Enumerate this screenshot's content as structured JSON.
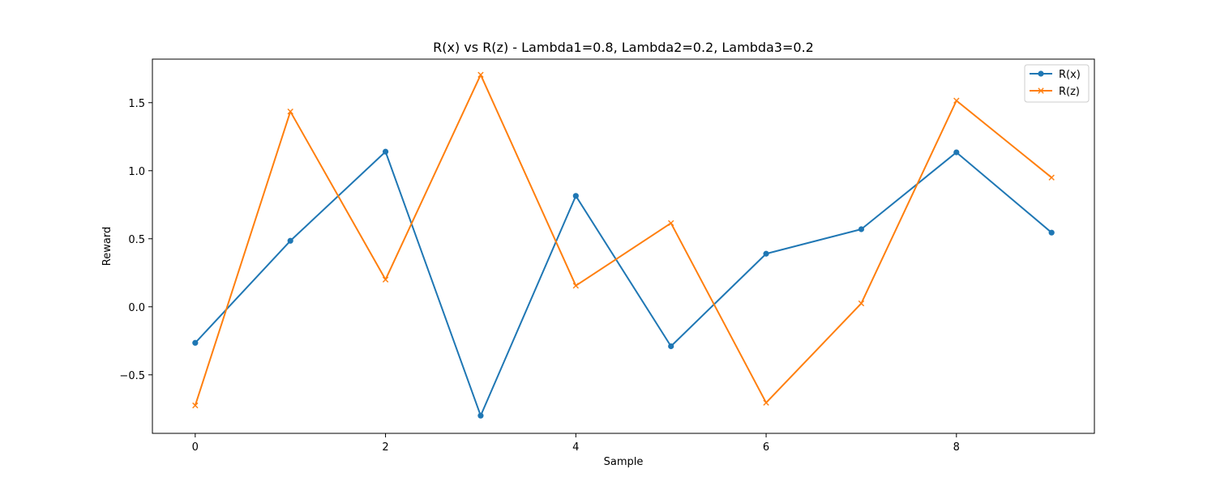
{
  "chart_data": {
    "type": "line",
    "title": "R(x) vs R(z) - Lambda1=0.8, Lambda2=0.2, Lambda3=0.2",
    "xlabel": "Sample",
    "ylabel": "Reward",
    "x": [
      0,
      1,
      2,
      3,
      4,
      5,
      6,
      7,
      8,
      9
    ],
    "xlim": [
      -0.45,
      9.45
    ],
    "ylim": [
      -0.93,
      1.82
    ],
    "xticks": [
      0,
      2,
      4,
      6,
      8
    ],
    "xtick_labels": [
      "0",
      "2",
      "4",
      "6",
      "8"
    ],
    "yticks": [
      -0.5,
      0.0,
      0.5,
      1.0,
      1.5
    ],
    "ytick_labels": [
      "−0.5",
      "0.0",
      "0.5",
      "1.0",
      "1.5"
    ],
    "grid": false,
    "legend_position": "top-right",
    "series": [
      {
        "name": "R(x)",
        "marker": "circle",
        "color": "#1f77b4",
        "values": [
          -0.265,
          0.485,
          1.14,
          -0.8,
          0.815,
          -0.29,
          0.39,
          0.57,
          1.135,
          0.545
        ]
      },
      {
        "name": "R(z)",
        "marker": "x",
        "color": "#ff7f0e",
        "values": [
          -0.725,
          1.435,
          0.2,
          1.705,
          0.155,
          0.615,
          -0.705,
          0.025,
          1.515,
          0.95
        ]
      }
    ]
  }
}
